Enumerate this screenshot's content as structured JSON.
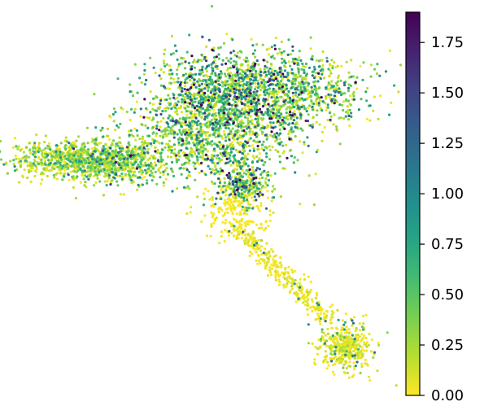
{
  "chart_data": {
    "type": "scatter",
    "title": "",
    "xlabel": "",
    "ylabel": "",
    "axes_visible": false,
    "embedding_range": {
      "x": [
        0,
        100
      ],
      "y": [
        0,
        100
      ]
    },
    "point_count": 5200,
    "colorbar": {
      "colormap": "viridis_r",
      "range": [
        0,
        1.9
      ],
      "ticks": [
        0.0,
        0.25,
        0.5,
        0.75,
        1.0,
        1.25,
        1.5,
        1.75
      ],
      "tick_labels": [
        "0.00",
        "0.25",
        "0.50",
        "0.75",
        "1.00",
        "1.25",
        "1.50",
        "1.75"
      ],
      "position": "right"
    },
    "regions": [
      {
        "name": "left arm",
        "center": [
          12,
          37
        ],
        "spread": [
          8,
          2.6
        ],
        "share": 0.13,
        "mean_value": 0.22
      },
      {
        "name": "left arm inner",
        "center": [
          25,
          38
        ],
        "spread": [
          7,
          3.2
        ],
        "share": 0.1,
        "mean_value": 0.35
      },
      {
        "name": "central top lobe",
        "center": [
          55,
          18
        ],
        "spread": [
          10,
          6
        ],
        "share": 0.2,
        "mean_value": 0.55
      },
      {
        "name": "central middle",
        "center": [
          52,
          30
        ],
        "spread": [
          12,
          7
        ],
        "share": 0.22,
        "mean_value": 0.45
      },
      {
        "name": "right lobe",
        "center": [
          76,
          18
        ],
        "spread": [
          9,
          5
        ],
        "share": 0.12,
        "mean_value": 0.48
      },
      {
        "name": "stem",
        "center": [
          60,
          44
        ],
        "spread": [
          4,
          3
        ],
        "share": 0.05,
        "mean_value": 0.55
      },
      {
        "name": "lower tail",
        "center": [
          72,
          70
        ],
        "spread": [
          1.5,
          1.5
        ],
        "share": 0.06,
        "mean_value": 0.05
      },
      {
        "name": "bottom cluster",
        "center": [
          88,
          90
        ],
        "spread": [
          3.5,
          3.5
        ],
        "share": 0.08,
        "mean_value": 0.08
      },
      {
        "name": "scattered",
        "center": [
          58,
          52
        ],
        "spread": [
          6,
          5
        ],
        "share": 0.04,
        "mean_value": 0.02
      }
    ]
  }
}
